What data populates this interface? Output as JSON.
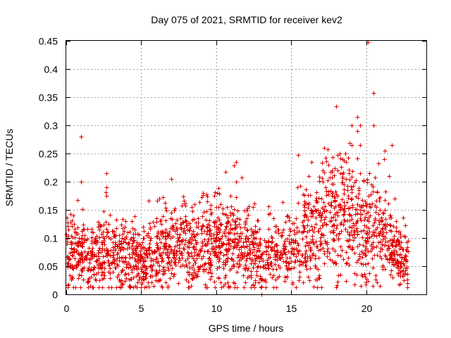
{
  "chart_data": {
    "type": "scatter",
    "title": "Day 075 of 2021, SRMTID for receiver kev2",
    "xlabel": "GPS time / hours",
    "ylabel": "SRMTID / TECUs",
    "xlim": [
      0,
      24
    ],
    "ylim": [
      0,
      0.45
    ],
    "xticks": [
      0,
      5,
      10,
      15,
      20
    ],
    "yticks": [
      0,
      0.05,
      0.1,
      0.15,
      0.2,
      0.25,
      0.3,
      0.35,
      0.4,
      0.45
    ],
    "xtick_labels": [
      "0",
      "5",
      "10",
      "15",
      "20"
    ],
    "ytick_labels": [
      "0",
      "0.05",
      "0.1",
      "0.15",
      "0.2",
      "0.25",
      "0.3",
      "0.35",
      "0.4",
      "0.45"
    ],
    "grid": true,
    "marker": "+",
    "color": "#e00000",
    "series": [
      {
        "name": "SRMTID",
        "baseline_profile": [
          [
            0.0,
            0.075
          ],
          [
            1.0,
            0.07
          ],
          [
            2.0,
            0.07
          ],
          [
            3.0,
            0.075
          ],
          [
            4.0,
            0.07
          ],
          [
            5.0,
            0.055
          ],
          [
            6.0,
            0.075
          ],
          [
            7.0,
            0.085
          ],
          [
            8.0,
            0.085
          ],
          [
            9.0,
            0.085
          ],
          [
            10.0,
            0.09
          ],
          [
            11.0,
            0.09
          ],
          [
            12.0,
            0.085
          ],
          [
            13.0,
            0.055
          ],
          [
            14.0,
            0.075
          ],
          [
            15.0,
            0.085
          ],
          [
            16.0,
            0.1
          ],
          [
            17.0,
            0.13
          ],
          [
            18.0,
            0.15
          ],
          [
            19.0,
            0.13
          ],
          [
            20.0,
            0.1
          ],
          [
            21.0,
            0.1
          ],
          [
            22.0,
            0.07
          ],
          [
            22.8,
            0.06
          ]
        ],
        "highlight_points": [
          [
            1.0,
            0.28
          ],
          [
            1.0,
            0.2
          ],
          [
            2.7,
            0.215
          ],
          [
            2.7,
            0.19
          ],
          [
            2.7,
            0.175
          ],
          [
            11.3,
            0.235
          ],
          [
            11.3,
            0.2
          ],
          [
            13.0,
            0.0
          ],
          [
            15.4,
            0.19
          ],
          [
            19.0,
            0.3
          ],
          [
            19.4,
            0.315
          ],
          [
            19.4,
            0.29
          ],
          [
            19.6,
            0.3
          ],
          [
            19.6,
            0.265
          ],
          [
            20.1,
            0.447
          ],
          [
            20.5,
            0.357
          ],
          [
            20.5,
            0.3
          ],
          [
            21.7,
            0.265
          ],
          [
            18.6,
            0.25
          ],
          [
            19.0,
            0.265
          ],
          [
            21.2,
            0.24
          ],
          [
            21.5,
            0.21
          ]
        ],
        "total_points": 2200
      }
    ]
  }
}
